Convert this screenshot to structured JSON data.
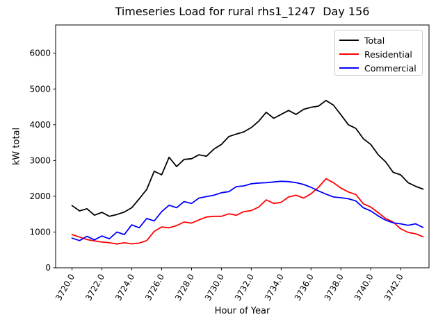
{
  "figure": {
    "background": "#ffffff"
  },
  "chart_data": {
    "type": "line",
    "title": "Timeseries Load for rural rhs1_1247  Day 156",
    "xlabel": "Hour of Year",
    "ylabel": "kW total",
    "grid": false,
    "legend_position": "upper right",
    "xlim": [
      3718.9,
      3743.9
    ],
    "ylim": [
      0,
      6790
    ],
    "x_tick_values": [
      3720,
      3722,
      3724,
      3726,
      3728,
      3730,
      3732,
      3734,
      3736,
      3738,
      3740,
      3742
    ],
    "x_tick_labels": [
      "3720.0",
      "3722.0",
      "3724.0",
      "3726.0",
      "3728.0",
      "3730.0",
      "3732.0",
      "3734.0",
      "3736.0",
      "3738.0",
      "3740.0",
      "3742.0"
    ],
    "y_tick_values": [
      0,
      1000,
      2000,
      3000,
      4000,
      5000,
      6000
    ],
    "y_tick_labels": [
      "0",
      "1000",
      "2000",
      "3000",
      "4000",
      "5000",
      "6000"
    ],
    "x": [
      3720.0,
      3720.5,
      3721.0,
      3721.5,
      3722.0,
      3722.5,
      3723.0,
      3723.5,
      3724.0,
      3724.5,
      3725.0,
      3725.5,
      3726.0,
      3726.5,
      3727.0,
      3727.5,
      3728.0,
      3728.5,
      3729.0,
      3729.5,
      3730.0,
      3730.5,
      3731.0,
      3731.5,
      3732.0,
      3732.5,
      3733.0,
      3733.5,
      3734.0,
      3734.5,
      3735.0,
      3735.5,
      3736.0,
      3736.5,
      3737.0,
      3737.5,
      3738.0,
      3738.5,
      3739.0,
      3739.5,
      3740.0,
      3740.5,
      3741.0,
      3741.5,
      3742.0,
      3742.5,
      3743.0,
      3743.5
    ],
    "series": [
      {
        "name": "Total",
        "color": "#000000",
        "values": [
          1740,
          1590,
          1650,
          1470,
          1550,
          1440,
          1490,
          1560,
          1680,
          1930,
          2190,
          2700,
          2600,
          3090,
          2830,
          3030,
          3050,
          3160,
          3120,
          3320,
          3450,
          3670,
          3740,
          3800,
          3920,
          4100,
          4350,
          4180,
          4290,
          4400,
          4290,
          4430,
          4490,
          4520,
          4680,
          4550,
          4280,
          4000,
          3900,
          3610,
          3450,
          3160,
          2960,
          2670,
          2600,
          2380,
          2280,
          2200
        ]
      },
      {
        "name": "Residential",
        "color": "#ff0000",
        "values": [
          930,
          860,
          790,
          750,
          720,
          700,
          665,
          700,
          670,
          690,
          760,
          1020,
          1140,
          1120,
          1180,
          1280,
          1250,
          1340,
          1420,
          1440,
          1440,
          1510,
          1470,
          1570,
          1600,
          1700,
          1900,
          1800,
          1830,
          1980,
          2030,
          1950,
          2070,
          2250,
          2490,
          2380,
          2230,
          2120,
          2050,
          1790,
          1700,
          1540,
          1380,
          1280,
          1090,
          990,
          950,
          870
        ]
      },
      {
        "name": "Commercial",
        "color": "#0000ff",
        "values": [
          830,
          760,
          880,
          780,
          890,
          810,
          1000,
          930,
          1200,
          1120,
          1380,
          1310,
          1570,
          1750,
          1680,
          1850,
          1800,
          1950,
          1990,
          2030,
          2100,
          2130,
          2270,
          2290,
          2350,
          2370,
          2380,
          2400,
          2420,
          2410,
          2380,
          2330,
          2250,
          2150,
          2060,
          1980,
          1960,
          1930,
          1870,
          1680,
          1590,
          1450,
          1330,
          1260,
          1230,
          1190,
          1230,
          1130
        ]
      }
    ]
  },
  "legend": {
    "entries": [
      "Total",
      "Residential",
      "Commercial"
    ]
  }
}
